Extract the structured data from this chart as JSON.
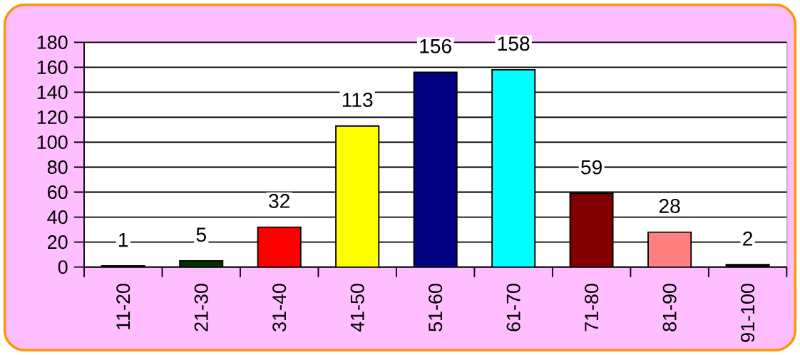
{
  "chart_data": {
    "type": "bar",
    "categories": [
      "11-20",
      "21-30",
      "31-40",
      "41-50",
      "51-60",
      "61-70",
      "71-80",
      "81-90",
      "91-100"
    ],
    "values": [
      1,
      5,
      32,
      113,
      156,
      158,
      59,
      28,
      2
    ],
    "colors": [
      "#000000",
      "#003300",
      "#ff0000",
      "#ffff00",
      "#000080",
      "#00ffff",
      "#800000",
      "#ff8080",
      "#000000"
    ],
    "ylim": [
      0,
      180
    ],
    "yticks": [
      0,
      20,
      40,
      60,
      80,
      100,
      120,
      140,
      160,
      180
    ],
    "grid": "y",
    "data_labels": true
  }
}
